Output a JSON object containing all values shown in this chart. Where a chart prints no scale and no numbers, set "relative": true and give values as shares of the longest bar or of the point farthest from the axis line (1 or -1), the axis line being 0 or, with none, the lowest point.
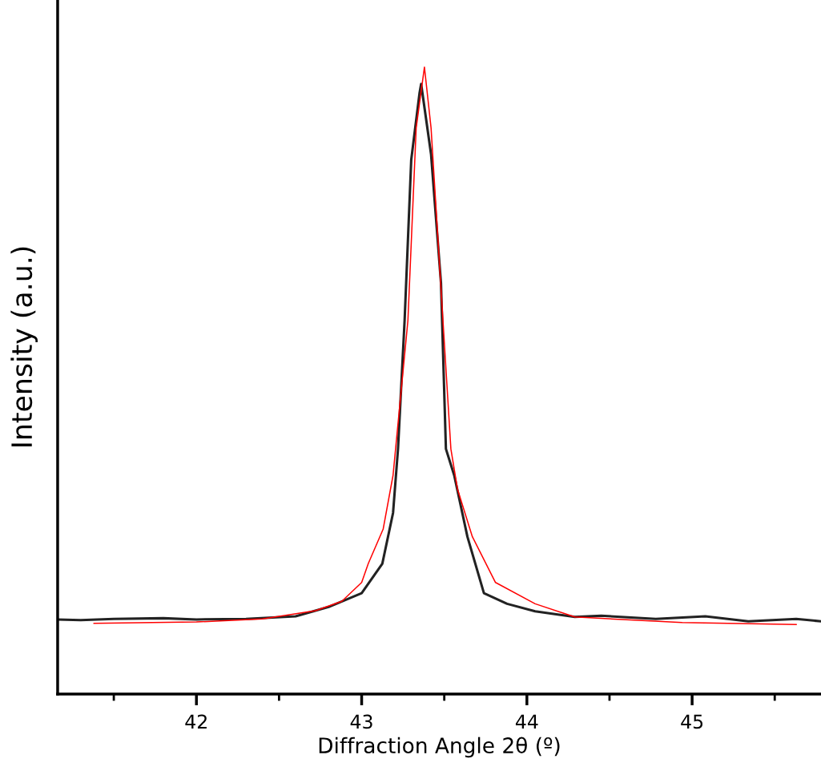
{
  "chart_data": {
    "type": "line",
    "xlabel": "Diffraction Angle 2θ (º)",
    "ylabel": "Intensity (a.u.)",
    "relative": true,
    "grid": false,
    "legend": false,
    "marker": "none",
    "line_style": "solid",
    "xlim": [
      41.16,
      45.78
    ],
    "xticks": [
      {
        "value": 41.5,
        "label": null
      },
      42,
      {
        "value": 42.5,
        "label": null
      },
      43,
      {
        "value": 43.5,
        "label": null
      },
      44,
      {
        "value": 44.5,
        "label": null
      },
      45,
      {
        "value": 45.5,
        "label": null
      }
    ],
    "series": [
      {
        "color": "#222222",
        "x": [
          41.16,
          41.3,
          41.5,
          41.8,
          42.0,
          42.3,
          42.6,
          42.8,
          43.0,
          43.125,
          43.19,
          43.22,
          43.26,
          43.3,
          43.35,
          43.36,
          43.42,
          43.48,
          43.51,
          43.56,
          43.64,
          43.74,
          43.88,
          44.05,
          44.29,
          44.45,
          44.78,
          45.08,
          45.34,
          45.63,
          45.78
        ],
        "values": [
          0.119,
          0.118,
          0.12,
          0.121,
          0.119,
          0.12,
          0.124,
          0.139,
          0.161,
          0.208,
          0.289,
          0.391,
          0.596,
          0.852,
          0.958,
          0.973,
          0.861,
          0.656,
          0.391,
          0.349,
          0.251,
          0.161,
          0.144,
          0.132,
          0.123,
          0.125,
          0.12,
          0.124,
          0.116,
          0.12,
          0.116
        ]
      },
      {
        "color": "#ff0000",
        "x": [
          41.38,
          42.0,
          42.4,
          42.72,
          42.88,
          43.0,
          43.04,
          43.13,
          43.19,
          43.28,
          43.33,
          43.38,
          43.42,
          43.46,
          43.54,
          43.58,
          43.67,
          43.81,
          44.05,
          44.29,
          44.94,
          45.63
        ],
        "values": [
          0.113,
          0.115,
          0.12,
          0.133,
          0.148,
          0.178,
          0.208,
          0.263,
          0.349,
          0.596,
          0.903,
          1.0,
          0.903,
          0.733,
          0.391,
          0.327,
          0.251,
          0.178,
          0.144,
          0.123,
          0.114,
          0.111
        ]
      }
    ]
  }
}
